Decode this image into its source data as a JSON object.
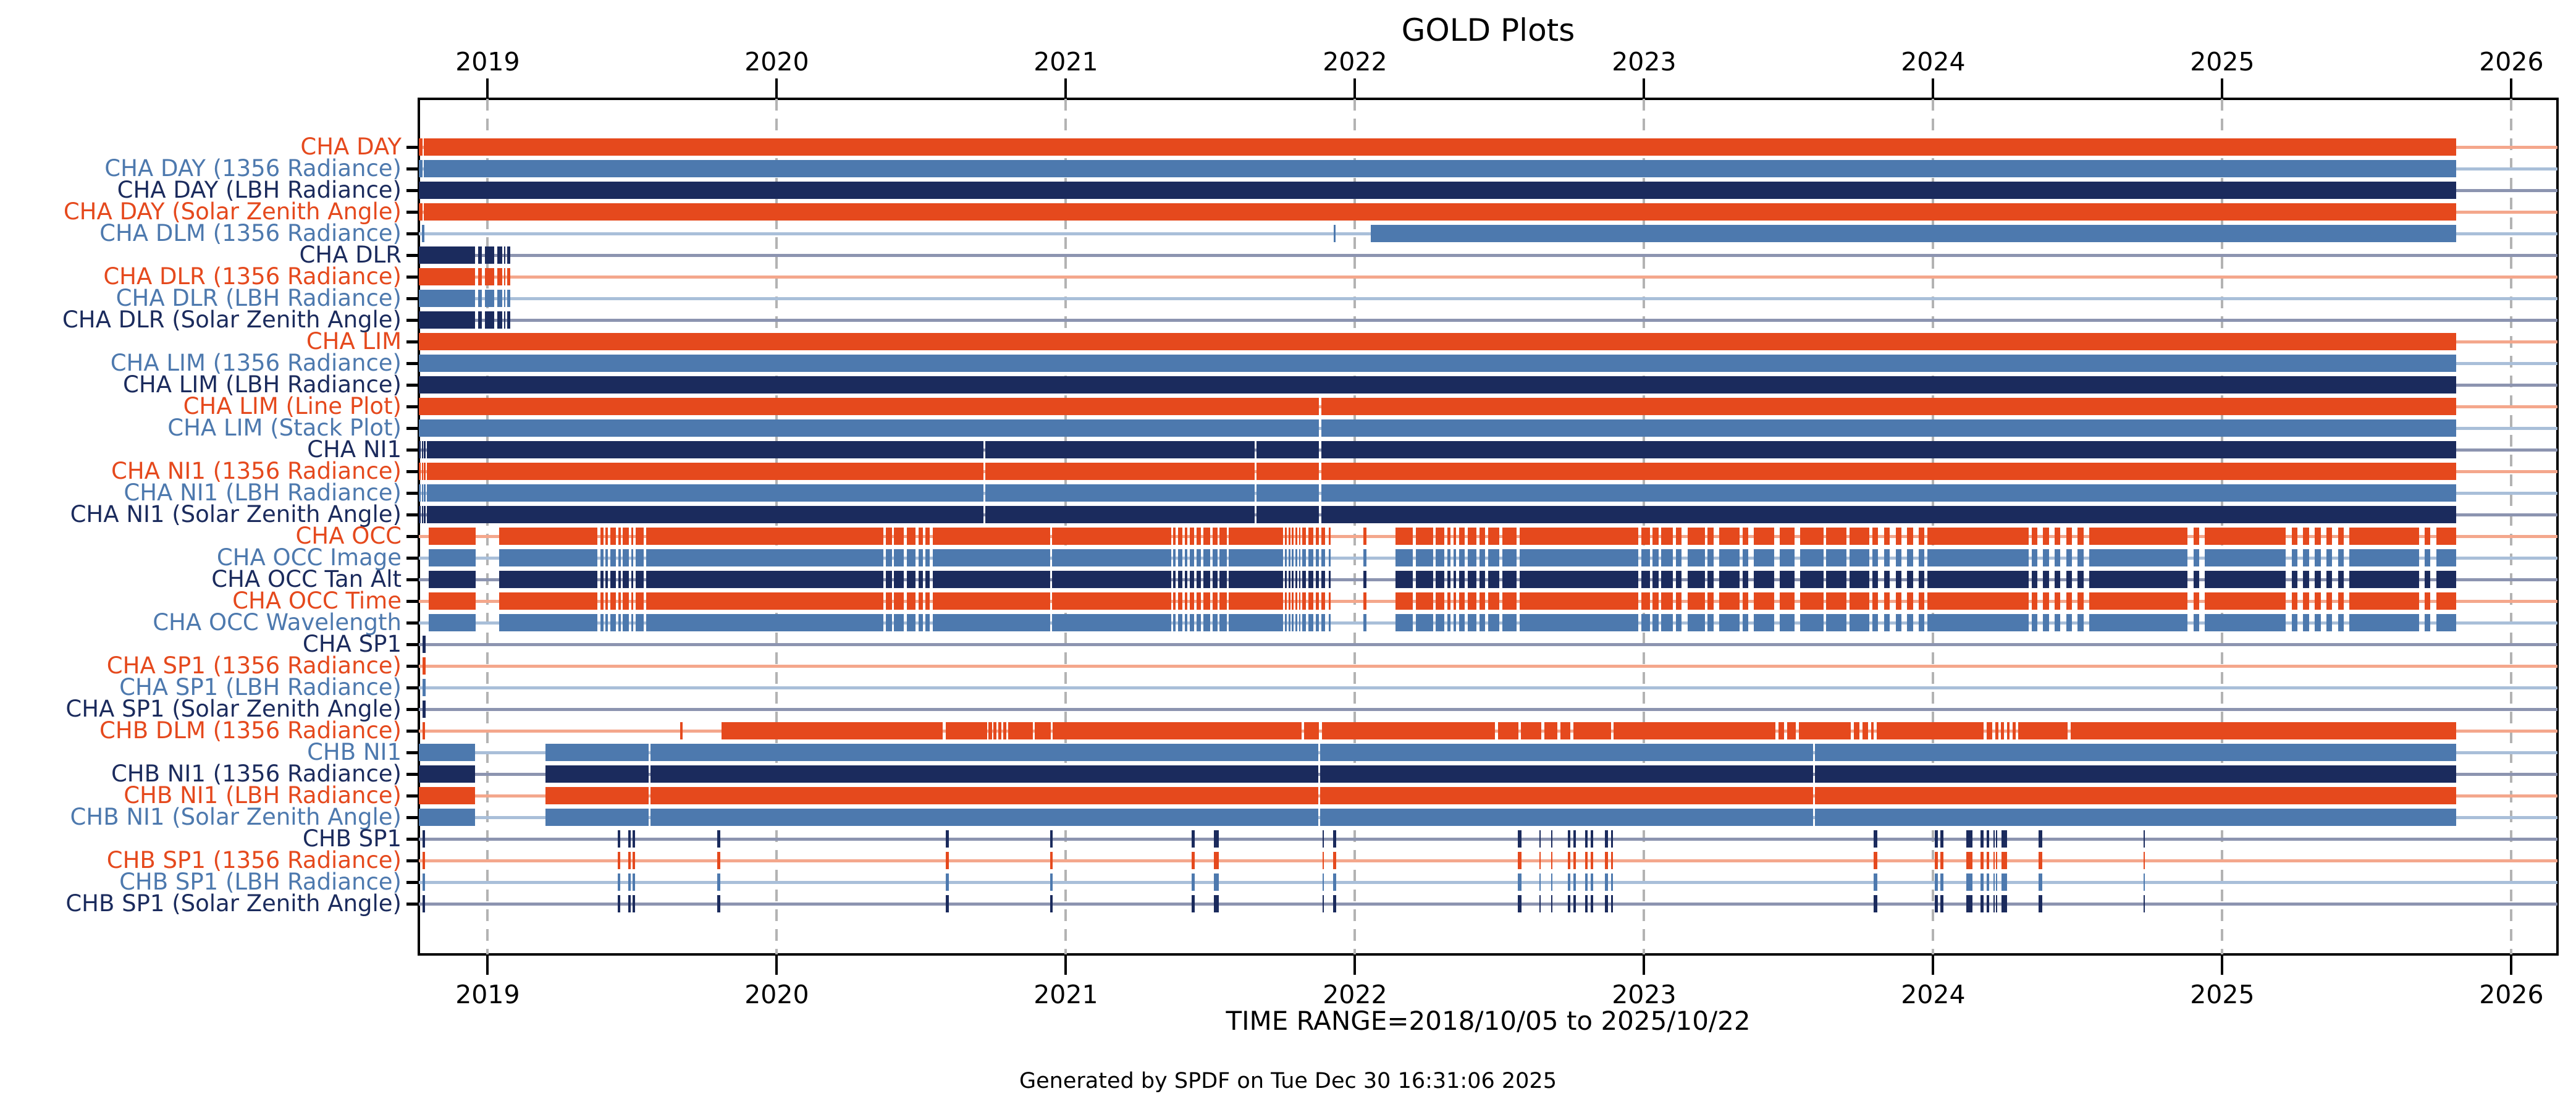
{
  "title": "GOLD Plots",
  "xlabel": "TIME RANGE=2018/10/05 to 2025/10/22",
  "footer": "Generated by SPDF on Tue Dec 30 16:31:06 2025",
  "time_range": {
    "start": "2018/10/05",
    "end": "2025/10/22"
  },
  "chart_data": {
    "type": "bar",
    "subtype": "interval-availability-timeline",
    "title": "GOLD Plots",
    "xlabel": "TIME RANGE=2018/10/05 to 2025/10/22",
    "footer": "Generated by SPDF on Tue Dec 30 16:31:06 2025",
    "x_axis": {
      "min": 2018.762,
      "max": 2026.16,
      "tick_years": [
        2019,
        2020,
        2021,
        2022,
        2023,
        2024,
        2025,
        2026
      ],
      "grid": "dashed-vertical",
      "labels_top": true,
      "labels_bottom": true
    },
    "colors": {
      "orange": "#E5491D",
      "steel": "#4D79AE",
      "navy": "#1B2B5D",
      "orange_light": "#F4A78C",
      "steel_light": "#A9BFD9",
      "navy_light": "#8C94B0",
      "grid": "#b3b3b3",
      "axis": "#000000"
    },
    "patterns": {
      "full": [
        [
          2018.762,
          2025.81
        ]
      ],
      "day": [
        [
          2018.762,
          2018.774
        ],
        [
          2018.78,
          2025.81
        ]
      ],
      "dlm": [
        [
          2022.055,
          2025.81
        ]
      ],
      "dlr": [
        [
          2018.762,
          2018.956
        ],
        [
          2018.968,
          2018.98
        ],
        [
          2018.991,
          2019.022
        ],
        [
          2019.034,
          2019.05
        ],
        [
          2019.057,
          2019.061
        ],
        [
          2019.067,
          2019.079
        ]
      ],
      "lim2": [
        [
          2018.762,
          2021.876
        ],
        [
          2021.883,
          2025.81
        ]
      ],
      "ni1": [
        [
          2018.762,
          2018.768
        ],
        [
          2018.772,
          2018.776
        ],
        [
          2018.78,
          2018.785
        ],
        [
          2018.79,
          2020.715
        ],
        [
          2020.722,
          2021.654
        ],
        [
          2021.66,
          2021.876
        ],
        [
          2021.883,
          2025.81
        ]
      ],
      "occ": [
        [
          2018.797,
          2018.958
        ],
        [
          2019.04,
          2019.38
        ],
        [
          2019.39,
          2019.4
        ],
        [
          2019.408,
          2019.415
        ],
        [
          2019.424,
          2019.444
        ],
        [
          2019.452,
          2019.46
        ],
        [
          2019.468,
          2019.488
        ],
        [
          2019.496,
          2019.504
        ],
        [
          2019.512,
          2019.54
        ],
        [
          2019.548,
          2020.368
        ],
        [
          2020.378,
          2020.398
        ],
        [
          2020.406,
          2020.44
        ],
        [
          2020.45,
          2020.48
        ],
        [
          2020.49,
          2020.505
        ],
        [
          2020.515,
          2020.53
        ],
        [
          2020.54,
          2020.945
        ],
        [
          2020.952,
          2021.365
        ],
        [
          2021.372,
          2021.38
        ],
        [
          2021.388,
          2021.404
        ],
        [
          2021.412,
          2021.42
        ],
        [
          2021.428,
          2021.444
        ],
        [
          2021.452,
          2021.468
        ],
        [
          2021.476,
          2021.5
        ],
        [
          2021.508,
          2021.524
        ],
        [
          2021.532,
          2021.556
        ],
        [
          2021.564,
          2021.752
        ],
        [
          2021.758,
          2021.764
        ],
        [
          2021.77,
          2021.776
        ],
        [
          2021.782,
          2021.788
        ],
        [
          2021.794,
          2021.8
        ],
        [
          2021.806,
          2021.812
        ],
        [
          2021.818,
          2021.83
        ],
        [
          2021.838,
          2021.856
        ],
        [
          2021.864,
          2021.876
        ],
        [
          2021.884,
          2021.896
        ],
        [
          2021.91,
          2021.916
        ],
        [
          2022.03,
          2022.04
        ],
        [
          2022.14,
          2022.2
        ],
        [
          2022.21,
          2022.27
        ],
        [
          2022.28,
          2022.31
        ],
        [
          2022.32,
          2022.33
        ],
        [
          2022.34,
          2022.35
        ],
        [
          2022.36,
          2022.38
        ],
        [
          2022.39,
          2022.42
        ],
        [
          2022.43,
          2022.45
        ],
        [
          2022.46,
          2022.5
        ],
        [
          2022.51,
          2022.56
        ],
        [
          2022.57,
          2022.98
        ],
        [
          2022.99,
          2023.02
        ],
        [
          2023.03,
          2023.05
        ],
        [
          2023.06,
          2023.1
        ],
        [
          2023.11,
          2023.13
        ],
        [
          2023.15,
          2023.21
        ],
        [
          2023.22,
          2023.24
        ],
        [
          2023.26,
          2023.33
        ],
        [
          2023.34,
          2023.36
        ],
        [
          2023.38,
          2023.45
        ],
        [
          2023.47,
          2023.52
        ],
        [
          2023.54,
          2023.62
        ],
        [
          2023.63,
          2023.7
        ],
        [
          2023.71,
          2023.78
        ],
        [
          2023.79,
          2023.81
        ],
        [
          2023.83,
          2023.85
        ],
        [
          2023.87,
          2023.89
        ],
        [
          2023.91,
          2023.93
        ],
        [
          2023.95,
          2023.97
        ],
        [
          2023.98,
          2024.33
        ],
        [
          2024.34,
          2024.36
        ],
        [
          2024.38,
          2024.4
        ],
        [
          2024.42,
          2024.44
        ],
        [
          2024.46,
          2024.48
        ],
        [
          2024.5,
          2024.52
        ],
        [
          2024.54,
          2024.88
        ],
        [
          2024.9,
          2024.92
        ],
        [
          2024.94,
          2025.22
        ],
        [
          2025.24,
          2025.26
        ],
        [
          2025.28,
          2025.3
        ],
        [
          2025.32,
          2025.34
        ],
        [
          2025.36,
          2025.38
        ],
        [
          2025.4,
          2025.42
        ],
        [
          2025.44,
          2025.68
        ],
        [
          2025.7,
          2025.72
        ],
        [
          2025.74,
          2025.81
        ]
      ],
      "chbdlm": [
        [
          2019.81,
          2020.575
        ],
        [
          2020.585,
          2020.728
        ],
        [
          2020.733,
          2020.744
        ],
        [
          2020.75,
          2020.76
        ],
        [
          2020.766,
          2020.777
        ],
        [
          2020.783,
          2020.795
        ],
        [
          2020.8,
          2020.885
        ],
        [
          2020.893,
          2020.948
        ],
        [
          2020.955,
          2021.815
        ],
        [
          2021.825,
          2021.875
        ],
        [
          2021.885,
          2022.485
        ],
        [
          2022.495,
          2022.565
        ],
        [
          2022.575,
          2022.645
        ],
        [
          2022.655,
          2022.7
        ],
        [
          2022.71,
          2022.745
        ],
        [
          2022.755,
          2022.885
        ],
        [
          2022.895,
          2023.455
        ],
        [
          2023.465,
          2023.485
        ],
        [
          2023.495,
          2023.525
        ],
        [
          2023.535,
          2023.715
        ],
        [
          2023.725,
          2023.745
        ],
        [
          2023.755,
          2023.775
        ],
        [
          2023.785,
          2023.795
        ],
        [
          2023.805,
          2024.175
        ],
        [
          2024.185,
          2024.205
        ],
        [
          2024.215,
          2024.225
        ],
        [
          2024.235,
          2024.245
        ],
        [
          2024.255,
          2024.265
        ],
        [
          2024.275,
          2024.285
        ],
        [
          2024.295,
          2024.465
        ],
        [
          2024.475,
          2025.81
        ]
      ],
      "chbni1": [
        [
          2018.762,
          2018.956
        ],
        [
          2019.2,
          2019.556
        ],
        [
          2019.563,
          2021.873
        ],
        [
          2021.88,
          2023.585
        ],
        [
          2023.592,
          2025.81
        ]
      ]
    },
    "tick_sets": {
      "dlm": [
        [
          2018.777,
          4
        ],
        [
          2021.93,
          3
        ]
      ],
      "sp1a": [
        [
          2018.78,
          5
        ]
      ],
      "chbdlm": [
        [
          2018.78,
          4
        ],
        [
          2019.67,
          4
        ]
      ],
      "chbsp1": [
        [
          2018.78,
          4
        ],
        [
          2019.455,
          4
        ],
        [
          2019.49,
          4
        ],
        [
          2019.505,
          4
        ],
        [
          2019.8,
          5
        ],
        [
          2020.59,
          5
        ],
        [
          2020.95,
          4
        ],
        [
          2021.44,
          5
        ],
        [
          2021.52,
          8
        ],
        [
          2021.89,
          2
        ],
        [
          2021.93,
          5
        ],
        [
          2022.57,
          6
        ],
        [
          2022.64,
          2
        ],
        [
          2022.68,
          2
        ],
        [
          2022.74,
          4
        ],
        [
          2022.76,
          4
        ],
        [
          2022.8,
          4
        ],
        [
          2022.82,
          4
        ],
        [
          2022.87,
          5
        ],
        [
          2022.89,
          3
        ],
        [
          2023.8,
          6
        ],
        [
          2024.01,
          5
        ],
        [
          2024.03,
          5
        ],
        [
          2024.125,
          10
        ],
        [
          2024.17,
          5
        ],
        [
          2024.19,
          4
        ],
        [
          2024.21,
          2
        ],
        [
          2024.22,
          2
        ],
        [
          2024.245,
          9
        ],
        [
          2024.37,
          6
        ],
        [
          2024.73,
          2
        ]
      ]
    },
    "rows": [
      {
        "label": "CHA DAY",
        "color": "orange",
        "pattern": "day"
      },
      {
        "label": "CHA DAY (1356 Radiance)",
        "color": "steel",
        "pattern": "day"
      },
      {
        "label": "CHA DAY (LBH Radiance)",
        "color": "navy",
        "pattern": "full"
      },
      {
        "label": "CHA DAY (Solar Zenith Angle)",
        "color": "orange",
        "pattern": "day"
      },
      {
        "label": "CHA DLM (1356 Radiance)",
        "color": "steel",
        "pattern": "dlm",
        "ticks": "dlm"
      },
      {
        "label": "CHA DLR",
        "color": "navy",
        "pattern": "dlr"
      },
      {
        "label": "CHA DLR (1356 Radiance)",
        "color": "orange",
        "pattern": "dlr"
      },
      {
        "label": "CHA DLR (LBH Radiance)",
        "color": "steel",
        "pattern": "dlr"
      },
      {
        "label": "CHA DLR (Solar Zenith Angle)",
        "color": "navy",
        "pattern": "dlr"
      },
      {
        "label": "CHA LIM",
        "color": "orange",
        "pattern": "full"
      },
      {
        "label": "CHA LIM (1356 Radiance)",
        "color": "steel",
        "pattern": "full"
      },
      {
        "label": "CHA LIM (LBH Radiance)",
        "color": "navy",
        "pattern": "full"
      },
      {
        "label": "CHA LIM (Line Plot)",
        "color": "orange",
        "pattern": "lim2"
      },
      {
        "label": "CHA LIM (Stack Plot)",
        "color": "steel",
        "pattern": "lim2"
      },
      {
        "label": "CHA NI1",
        "color": "navy",
        "pattern": "ni1"
      },
      {
        "label": "CHA NI1 (1356 Radiance)",
        "color": "orange",
        "pattern": "ni1"
      },
      {
        "label": "CHA NI1 (LBH Radiance)",
        "color": "steel",
        "pattern": "ni1"
      },
      {
        "label": "CHA NI1 (Solar Zenith Angle)",
        "color": "navy",
        "pattern": "ni1"
      },
      {
        "label": "CHA OCC",
        "color": "orange",
        "pattern": "occ"
      },
      {
        "label": "CHA OCC Image",
        "color": "steel",
        "pattern": "occ"
      },
      {
        "label": "CHA OCC Tan Alt",
        "color": "navy",
        "pattern": "occ"
      },
      {
        "label": "CHA OCC Time",
        "color": "orange",
        "pattern": "occ"
      },
      {
        "label": "CHA OCC Wavelength",
        "color": "steel",
        "pattern": "occ"
      },
      {
        "label": "CHA SP1",
        "color": "navy",
        "ticks": "sp1a"
      },
      {
        "label": "CHA SP1 (1356 Radiance)",
        "color": "orange",
        "ticks": "sp1a"
      },
      {
        "label": "CHA SP1 (LBH Radiance)",
        "color": "steel",
        "ticks": "sp1a"
      },
      {
        "label": "CHA SP1 (Solar Zenith Angle)",
        "color": "navy",
        "ticks": "sp1a"
      },
      {
        "label": "CHB DLM (1356 Radiance)",
        "color": "orange",
        "pattern": "chbdlm",
        "ticks": "chbdlm"
      },
      {
        "label": "CHB NI1",
        "color": "steel",
        "pattern": "chbni1"
      },
      {
        "label": "CHB NI1 (1356 Radiance)",
        "color": "navy",
        "pattern": "chbni1"
      },
      {
        "label": "CHB NI1 (LBH Radiance)",
        "color": "orange",
        "pattern": "chbni1"
      },
      {
        "label": "CHB NI1 (Solar Zenith Angle)",
        "color": "steel",
        "pattern": "chbni1"
      },
      {
        "label": "CHB SP1",
        "color": "navy",
        "ticks": "chbsp1"
      },
      {
        "label": "CHB SP1 (1356 Radiance)",
        "color": "orange",
        "ticks": "chbsp1"
      },
      {
        "label": "CHB SP1 (LBH Radiance)",
        "color": "steel",
        "ticks": "chbsp1"
      },
      {
        "label": "CHB SP1 (Solar Zenith Angle)",
        "color": "navy",
        "ticks": "chbsp1"
      }
    ]
  }
}
